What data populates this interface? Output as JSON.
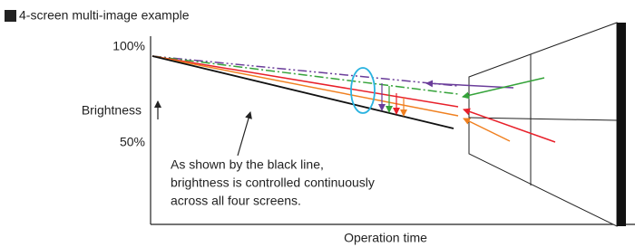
{
  "header": {
    "title": "4-screen multi-image example"
  },
  "axes": {
    "y_top": "100%",
    "y_mid": "50%",
    "y_label": "Brightness",
    "x_label": "Operation time"
  },
  "annotation": {
    "lines": [
      "As shown by the black line,",
      "brightness is controlled continuously",
      "across all four screens."
    ]
  }
}
